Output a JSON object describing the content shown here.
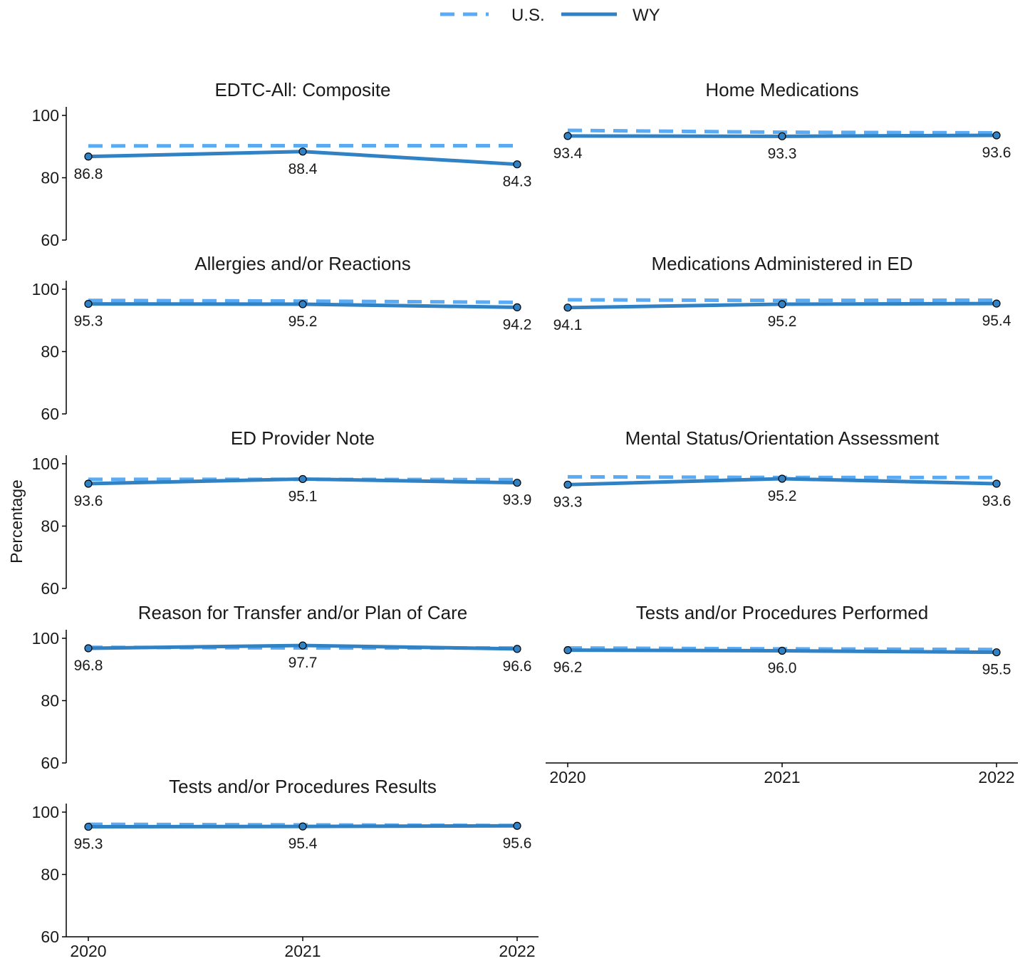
{
  "chart_data": {
    "type": "line",
    "ylabel": "Percentage",
    "x": [
      "2020",
      "2021",
      "2022"
    ],
    "ylim": [
      60,
      100
    ],
    "yticks": [
      "60",
      "80",
      "100"
    ],
    "legend": {
      "placement": "top",
      "items": [
        {
          "name": "U.S.",
          "style": "dashed",
          "color": "#5aabf5"
        },
        {
          "name": "WY",
          "style": "solid",
          "color": "#3182c4"
        }
      ]
    },
    "panels": [
      {
        "title": "EDTC-All: Composite",
        "us": [
          90.2,
          90.3,
          90.3
        ],
        "wy": [
          86.8,
          88.4,
          84.3
        ],
        "labels": [
          "86.8",
          "88.4",
          "84.3"
        ]
      },
      {
        "title": "Home Medications",
        "us": [
          95.2,
          94.6,
          94.4
        ],
        "wy": [
          93.4,
          93.3,
          93.6
        ],
        "labels": [
          "93.4",
          "93.3",
          "93.6"
        ]
      },
      {
        "title": "Allergies and/or Reactions",
        "us": [
          96.4,
          96.2,
          95.8
        ],
        "wy": [
          95.3,
          95.2,
          94.2
        ],
        "labels": [
          "95.3",
          "95.2",
          "94.2"
        ]
      },
      {
        "title": "Medications Administered in ED",
        "us": [
          96.6,
          96.4,
          96.5
        ],
        "wy": [
          94.1,
          95.2,
          95.4
        ],
        "labels": [
          "94.1",
          "95.2",
          "95.4"
        ]
      },
      {
        "title": "ED Provider Note",
        "us": [
          95.0,
          95.0,
          94.9
        ],
        "wy": [
          93.6,
          95.1,
          93.9
        ],
        "labels": [
          "93.6",
          "95.1",
          "93.9"
        ]
      },
      {
        "title": "Mental Status/Orientation Assessment",
        "us": [
          95.8,
          95.6,
          95.6
        ],
        "wy": [
          93.3,
          95.2,
          93.6
        ],
        "labels": [
          "93.3",
          "95.2",
          "93.6"
        ]
      },
      {
        "title": "Reason for Transfer and/or Plan of Care",
        "us": [
          97.1,
          96.9,
          96.9
        ],
        "wy": [
          96.8,
          97.7,
          96.6
        ],
        "labels": [
          "96.8",
          "97.7",
          "96.6"
        ]
      },
      {
        "title": "Tests and/or Procedures Performed",
        "us": [
          96.9,
          96.6,
          96.4
        ],
        "wy": [
          96.2,
          96.0,
          95.5
        ],
        "labels": [
          "96.2",
          "96.0",
          "95.5"
        ]
      },
      {
        "title": "Tests and/or Procedures Results",
        "us": [
          96.1,
          95.9,
          95.7
        ],
        "wy": [
          95.3,
          95.4,
          95.6
        ],
        "labels": [
          "95.3",
          "95.4",
          "95.6"
        ]
      }
    ]
  }
}
